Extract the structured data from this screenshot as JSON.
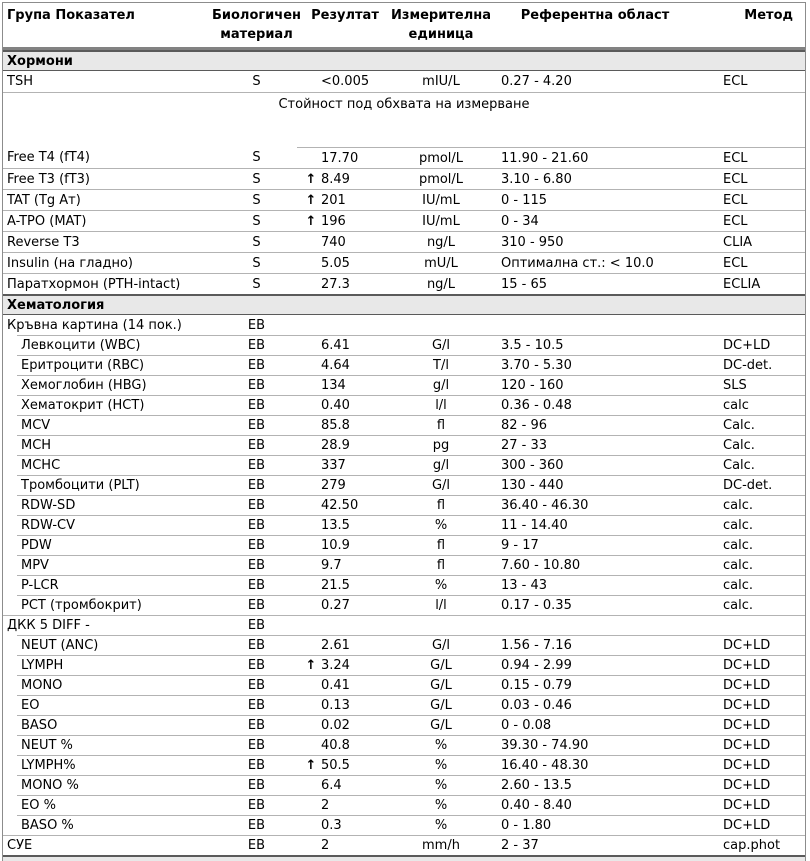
{
  "colors": {
    "section_bg": "#e8e8e8",
    "border_light": "#b3b3b3",
    "border_dark": "#5a5a5a",
    "header_border": "#828282",
    "text": "#000000"
  },
  "icons": {
    "high_flag_arrow": "↑"
  },
  "table": {
    "columns": [
      {
        "key": "name",
        "label": "Група Показател"
      },
      {
        "key": "mat",
        "label": "Биологичен материал"
      },
      {
        "key": "result",
        "label": "Резултат"
      },
      {
        "key": "unit",
        "label": "Измерителна единица"
      },
      {
        "key": "ref",
        "label": "Референтна област"
      },
      {
        "key": "method",
        "label": "Метод"
      }
    ],
    "rows": [
      {
        "type": "section",
        "label": "Хормони"
      },
      {
        "type": "row",
        "name": "TSH",
        "mat": "S",
        "flag": "",
        "result": "<0.005",
        "unit": "mIU/L",
        "ref": "0.27 - 4.20",
        "method": "ECL"
      },
      {
        "type": "note",
        "text": "Стойност под обхвата на измерване"
      },
      {
        "type": "row",
        "partial_top": true,
        "name": "Free T4 (fT4)",
        "mat": "S",
        "flag": "",
        "result": "17.70",
        "unit": "pmol/L",
        "ref": "11.90 - 21.60",
        "method": "ECL"
      },
      {
        "type": "row",
        "name": "Free T3 (fT3)",
        "mat": "S",
        "flag": "high",
        "result": "8.49",
        "unit": "pmol/L",
        "ref": "3.10 - 6.80",
        "method": "ECL"
      },
      {
        "type": "row",
        "name": "TAT (Tg Ат)",
        "mat": "S",
        "flag": "high",
        "result": "201",
        "unit": "IU/mL",
        "ref": "0 - 115",
        "method": "ECL"
      },
      {
        "type": "row",
        "name": "A-TPO (MAT)",
        "mat": "S",
        "flag": "high",
        "result": "196",
        "unit": "IU/mL",
        "ref": "0 - 34",
        "method": "ECL"
      },
      {
        "type": "row",
        "name": "Reverse T3",
        "mat": "S",
        "flag": "",
        "result": "740",
        "unit": "ng/L",
        "ref": "310 - 950",
        "method": "CLIA"
      },
      {
        "type": "row",
        "name": "Insulin (на гладно)",
        "mat": "S",
        "flag": "",
        "result": "5.05",
        "unit": "mU/L",
        "ref": "Оптимална ст.: < 10.0",
        "method": "ECL"
      },
      {
        "type": "row",
        "name": "Паратхормон (PTH-intact)",
        "mat": "S",
        "flag": "",
        "result": "27.3",
        "unit": "ng/L",
        "ref": "15 - 65",
        "method": "ECLIA"
      },
      {
        "type": "section",
        "label": "Хематология"
      },
      {
        "type": "row",
        "name": "Кръвна картина (14 пок.)",
        "mat": "EB",
        "flag": "",
        "result": "",
        "unit": "",
        "ref": "",
        "method": ""
      },
      {
        "type": "row",
        "sub": true,
        "name": "Левкоцити (WBC)",
        "mat": "EB",
        "flag": "",
        "result": "6.41",
        "unit": "G/l",
        "ref": "3.5 - 10.5",
        "method": "DC+LD"
      },
      {
        "type": "row",
        "sub": true,
        "name": "Еритроцити (RBC)",
        "mat": "EB",
        "flag": "",
        "result": "4.64",
        "unit": "T/l",
        "ref": "3.70 - 5.30",
        "method": "DC-det."
      },
      {
        "type": "row",
        "sub": true,
        "name": "Хемоглобин (HBG)",
        "mat": "EB",
        "flag": "",
        "result": "134",
        "unit": "g/l",
        "ref": "120 - 160",
        "method": "SLS"
      },
      {
        "type": "row",
        "sub": true,
        "name": "Хематокрит (HCT)",
        "mat": "EB",
        "flag": "",
        "result": "0.40",
        "unit": "l/l",
        "ref": "0.36 - 0.48",
        "method": "calc"
      },
      {
        "type": "row",
        "sub": true,
        "name": "MCV",
        "mat": "EB",
        "flag": "",
        "result": "85.8",
        "unit": "fl",
        "ref": "82 - 96",
        "method": "Calc."
      },
      {
        "type": "row",
        "sub": true,
        "name": "MCH",
        "mat": "EB",
        "flag": "",
        "result": "28.9",
        "unit": "pg",
        "ref": "27 - 33",
        "method": "Calc."
      },
      {
        "type": "row",
        "sub": true,
        "name": "MCHC",
        "mat": "EB",
        "flag": "",
        "result": "337",
        "unit": "g/l",
        "ref": "300 - 360",
        "method": "Calc."
      },
      {
        "type": "row",
        "sub": true,
        "name": "Тромбоцити (PLT)",
        "mat": "EB",
        "flag": "",
        "result": "279",
        "unit": "G/l",
        "ref": "130 - 440",
        "method": "DC-det."
      },
      {
        "type": "row",
        "sub": true,
        "name": "RDW-SD",
        "mat": "EB",
        "flag": "",
        "result": "42.50",
        "unit": "fl",
        "ref": "36.40 - 46.30",
        "method": "calc."
      },
      {
        "type": "row",
        "sub": true,
        "name": "RDW-CV",
        "mat": "EB",
        "flag": "",
        "result": "13.5",
        "unit": "%",
        "ref": "11 - 14.40",
        "method": "calc."
      },
      {
        "type": "row",
        "sub": true,
        "name": "PDW",
        "mat": "EB",
        "flag": "",
        "result": "10.9",
        "unit": "fl",
        "ref": "9 - 17",
        "method": "calc."
      },
      {
        "type": "row",
        "sub": true,
        "name": "MPV",
        "mat": "EB",
        "flag": "",
        "result": "9.7",
        "unit": "fl",
        "ref": "7.60 - 10.80",
        "method": "calc."
      },
      {
        "type": "row",
        "sub": true,
        "name": "P-LCR",
        "mat": "EB",
        "flag": "",
        "result": "21.5",
        "unit": "%",
        "ref": "13 - 43",
        "method": "calc."
      },
      {
        "type": "row",
        "sub": true,
        "name": "PCT (тромбокрит)",
        "mat": "EB",
        "flag": "",
        "result": "0.27",
        "unit": "l/l",
        "ref": "0.17 - 0.35",
        "method": "calc."
      },
      {
        "type": "row",
        "name": "ДКК 5 DIFF -",
        "mat": "EB",
        "flag": "",
        "result": "",
        "unit": "",
        "ref": "",
        "method": ""
      },
      {
        "type": "row",
        "sub": true,
        "name": "NEUT (ANC)",
        "mat": "EB",
        "flag": "",
        "result": "2.61",
        "unit": "G/l",
        "ref": "1.56 - 7.16",
        "method": "DC+LD"
      },
      {
        "type": "row",
        "sub": true,
        "name": "LYMPH",
        "mat": "EB",
        "flag": "high",
        "result": "3.24",
        "unit": "G/L",
        "ref": "0.94 - 2.99",
        "method": "DC+LD"
      },
      {
        "type": "row",
        "sub": true,
        "name": "MONO",
        "mat": "EB",
        "flag": "",
        "result": "0.41",
        "unit": "G/L",
        "ref": "0.15 - 0.79",
        "method": "DC+LD"
      },
      {
        "type": "row",
        "sub": true,
        "name": "EO",
        "mat": "EB",
        "flag": "",
        "result": "0.13",
        "unit": "G/L",
        "ref": "0.03 - 0.46",
        "method": "DC+LD"
      },
      {
        "type": "row",
        "sub": true,
        "name": "BASO",
        "mat": "EB",
        "flag": "",
        "result": "0.02",
        "unit": "G/L",
        "ref": "0 - 0.08",
        "method": "DC+LD"
      },
      {
        "type": "row",
        "sub": true,
        "name": "NEUT %",
        "mat": "EB",
        "flag": "",
        "result": "40.8",
        "unit": "%",
        "ref": "39.30 - 74.90",
        "method": "DC+LD"
      },
      {
        "type": "row",
        "sub": true,
        "name": "LYMPH%",
        "mat": "EB",
        "flag": "high",
        "result": "50.5",
        "unit": "%",
        "ref": "16.40 - 48.30",
        "method": "DC+LD"
      },
      {
        "type": "row",
        "sub": true,
        "name": "MONO %",
        "mat": "EB",
        "flag": "",
        "result": "6.4",
        "unit": "%",
        "ref": "2.60 - 13.5",
        "method": "DC+LD"
      },
      {
        "type": "row",
        "sub": true,
        "name": "EO %",
        "mat": "EB",
        "flag": "",
        "result": "2",
        "unit": "%",
        "ref": "0.40 - 8.40",
        "method": "DC+LD"
      },
      {
        "type": "row",
        "sub": true,
        "name": "BASO %",
        "mat": "EB",
        "flag": "",
        "result": "0.3",
        "unit": "%",
        "ref": "0 - 1.80",
        "method": "DC+LD"
      },
      {
        "type": "row",
        "name": "СУЕ",
        "mat": "EB",
        "flag": "",
        "result": "2",
        "unit": "mm/h",
        "ref": "2 - 37",
        "method": "cap.phot"
      }
    ]
  }
}
